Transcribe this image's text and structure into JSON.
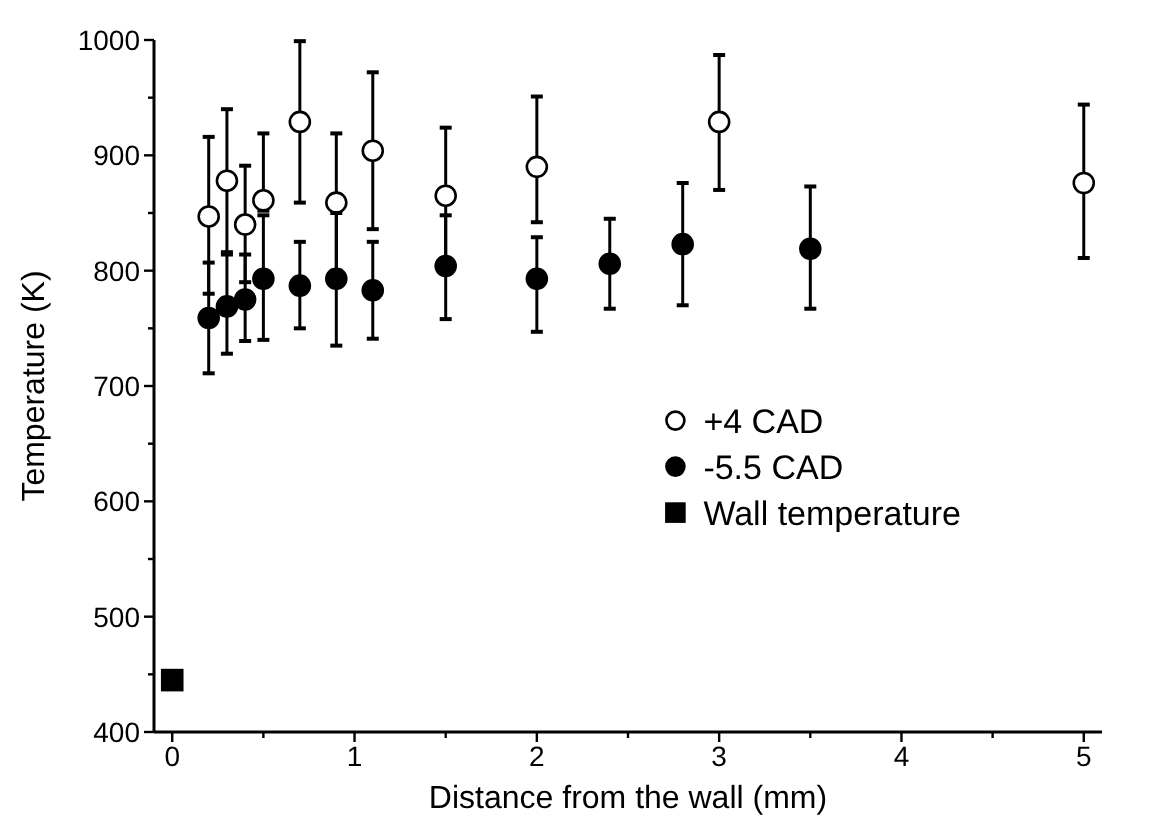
{
  "chart_data": {
    "type": "scatter",
    "xlabel": "Distance from the wall (mm)",
    "ylabel": "Temperature (K)",
    "xlim": [
      -0.1,
      5.1
    ],
    "ylim": [
      400,
      1000
    ],
    "xticks": [
      0,
      {
        "value": 0.5,
        "label": null
      },
      1,
      {
        "value": 1.5,
        "label": null
      },
      2,
      {
        "value": 2.5,
        "label": null
      },
      3,
      {
        "value": 3.5,
        "label": null
      },
      4,
      {
        "value": 4.5,
        "label": null
      },
      5
    ],
    "yticks": [
      400,
      {
        "value": 450,
        "label": null
      },
      500,
      {
        "value": 550,
        "label": null
      },
      600,
      {
        "value": 650,
        "label": null
      },
      700,
      {
        "value": 750,
        "label": null
      },
      800,
      {
        "value": 850,
        "label": null
      },
      900,
      {
        "value": 950,
        "label": null
      },
      1000
    ],
    "legend": "right",
    "grid": false,
    "series": [
      {
        "name": "+4 CAD",
        "color": "#ffffff",
        "marker": "circle",
        "x": [
          0.2,
          0.3,
          0.4,
          0.5,
          0.7,
          0.9,
          1.1,
          1.5,
          2.0,
          3.0,
          5.0
        ],
        "values": [
          847,
          878,
          840,
          861,
          929,
          859,
          904,
          865,
          890,
          929,
          876
        ],
        "errors": [
          [
            780,
            916
          ],
          [
            816,
            940
          ],
          [
            790,
            891
          ],
          [
            852,
            919
          ],
          [
            859,
            999
          ],
          [
            800,
            919
          ],
          [
            836,
            972
          ],
          [
            807,
            924
          ],
          [
            842,
            951
          ],
          [
            870,
            987
          ],
          [
            811,
            944
          ]
        ]
      },
      {
        "name": "-5.5 CAD",
        "color": "#000000",
        "marker": "circle",
        "x": [
          0.2,
          0.3,
          0.4,
          0.5,
          0.7,
          0.9,
          1.1,
          1.5,
          2.0,
          2.4,
          2.8,
          3.5
        ],
        "values": [
          759,
          769,
          775,
          793,
          787,
          793,
          783,
          804,
          793,
          806,
          823,
          819
        ],
        "errors": [
          [
            711,
            807
          ],
          [
            728,
            814
          ],
          [
            739,
            814
          ],
          [
            740,
            848
          ],
          [
            750,
            825
          ],
          [
            735,
            850
          ],
          [
            741,
            825
          ],
          [
            758,
            848
          ],
          [
            747,
            829
          ],
          [
            767,
            845
          ],
          [
            770,
            876
          ],
          [
            767,
            873
          ]
        ]
      },
      {
        "name": "Wall temperature",
        "color": "#000000",
        "marker": "square",
        "x": [
          0
        ],
        "values": [
          445
        ]
      }
    ]
  }
}
